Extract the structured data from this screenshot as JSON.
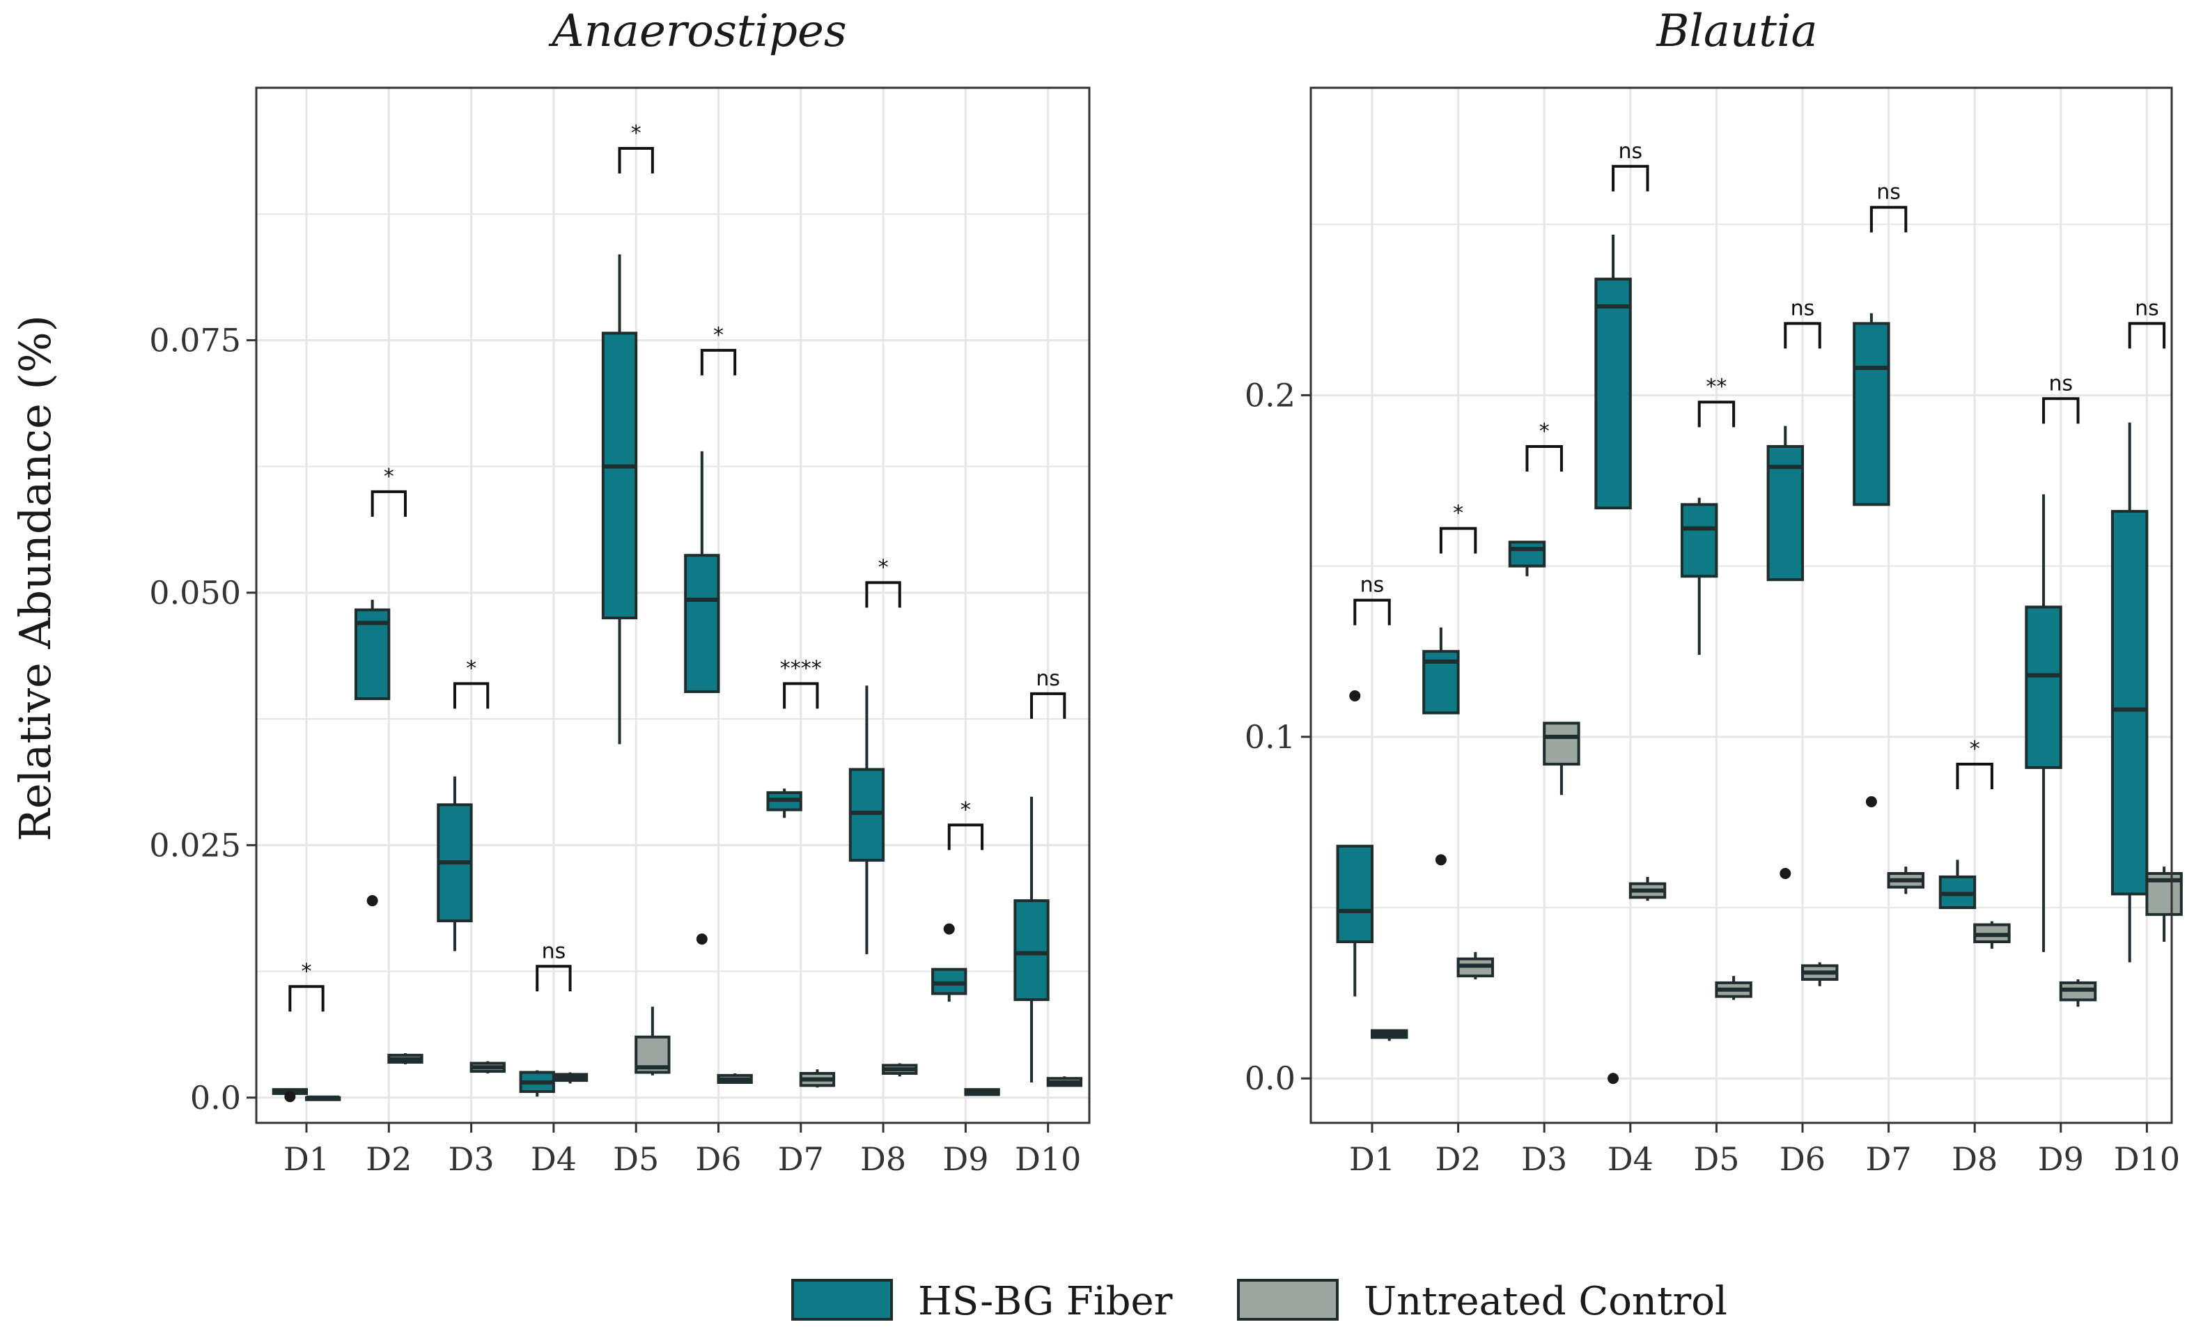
{
  "colors": {
    "treatment_fill": "#0e7a86",
    "control_fill": "#9ba6a0",
    "box_stroke": "#1f2d2f",
    "grid": "#e6e6e6",
    "panel_border": "#333333"
  },
  "y_axis_label": "Relative Abundance (%)",
  "legend": {
    "items": [
      {
        "label": "HS-BG Fiber",
        "color": "#0e7a86"
      },
      {
        "label": "Untreated Control",
        "color": "#9ba6a0"
      }
    ]
  },
  "chart_data": [
    {
      "type": "boxplot",
      "title": "Anaerostipes",
      "categories": [
        "D1",
        "D2",
        "D3",
        "D4",
        "D5",
        "D6",
        "D7",
        "D8",
        "D9",
        "D10"
      ],
      "ylim": [
        -0.0025,
        0.1
      ],
      "yticks": [
        0.0,
        0.025,
        0.05,
        0.075
      ],
      "ytick_labels": [
        "0.0",
        "0.025",
        "0.050",
        "0.075"
      ],
      "series": [
        {
          "name": "HS-BG Fiber",
          "boxes": [
            {
              "min": 0.0004,
              "q1": 0.0004,
              "median": 0.0006,
              "q3": 0.0008,
              "max": 0.0008,
              "outliers": [
                0.0001
              ]
            },
            {
              "min": 0.0395,
              "q1": 0.0395,
              "median": 0.047,
              "q3": 0.0483,
              "max": 0.0493,
              "outliers": [
                0.0195
              ]
            },
            {
              "min": 0.0145,
              "q1": 0.0175,
              "median": 0.0233,
              "q3": 0.029,
              "max": 0.0318,
              "outliers": []
            },
            {
              "min": 0.0001,
              "q1": 0.0006,
              "median": 0.0015,
              "q3": 0.0025,
              "max": 0.0027,
              "outliers": []
            },
            {
              "min": 0.035,
              "q1": 0.0475,
              "median": 0.0625,
              "q3": 0.0757,
              "max": 0.0835,
              "outliers": []
            },
            {
              "min": 0.0402,
              "q1": 0.0402,
              "median": 0.0493,
              "q3": 0.0537,
              "max": 0.064,
              "outliers": [
                0.0157
              ]
            },
            {
              "min": 0.0277,
              "q1": 0.0285,
              "median": 0.0295,
              "q3": 0.0302,
              "max": 0.0306,
              "outliers": []
            },
            {
              "min": 0.0142,
              "q1": 0.0235,
              "median": 0.0282,
              "q3": 0.0325,
              "max": 0.0408,
              "outliers": []
            },
            {
              "min": 0.0095,
              "q1": 0.0103,
              "median": 0.0113,
              "q3": 0.0127,
              "max": 0.0127,
              "outliers": [
                0.0167
              ]
            },
            {
              "min": 0.0015,
              "q1": 0.0097,
              "median": 0.0143,
              "q3": 0.0195,
              "max": 0.0298,
              "outliers": []
            }
          ]
        },
        {
          "name": "Untreated Control",
          "boxes": [
            {
              "min": 0.0,
              "q1": 0.0,
              "median": 0.0,
              "q3": 0.0,
              "max": 0.0,
              "outliers": []
            },
            {
              "min": 0.0033,
              "q1": 0.0035,
              "median": 0.0038,
              "q3": 0.0042,
              "max": 0.0044,
              "outliers": []
            },
            {
              "min": 0.0024,
              "q1": 0.0026,
              "median": 0.003,
              "q3": 0.0034,
              "max": 0.0036,
              "outliers": []
            },
            {
              "min": 0.0014,
              "q1": 0.0017,
              "median": 0.002,
              "q3": 0.0023,
              "max": 0.0025,
              "outliers": []
            },
            {
              "min": 0.0022,
              "q1": 0.0025,
              "median": 0.003,
              "q3": 0.006,
              "max": 0.009,
              "outliers": []
            },
            {
              "min": 0.0014,
              "q1": 0.0015,
              "median": 0.0018,
              "q3": 0.0022,
              "max": 0.0024,
              "outliers": []
            },
            {
              "min": 0.001,
              "q1": 0.0012,
              "median": 0.0018,
              "q3": 0.0024,
              "max": 0.0028,
              "outliers": []
            },
            {
              "min": 0.0021,
              "q1": 0.0024,
              "median": 0.0028,
              "q3": 0.0032,
              "max": 0.0034,
              "outliers": []
            },
            {
              "min": 0.0002,
              "q1": 0.0003,
              "median": 0.0005,
              "q3": 0.0008,
              "max": 0.0009,
              "outliers": []
            },
            {
              "min": 0.0011,
              "q1": 0.0012,
              "median": 0.0015,
              "q3": 0.0019,
              "max": 0.0021,
              "outliers": []
            }
          ]
        }
      ],
      "significance": [
        "*",
        "*",
        "*",
        "ns",
        "*",
        "*",
        "****",
        "*",
        "*",
        "ns"
      ],
      "significance_y": [
        0.011,
        0.06,
        0.041,
        0.013,
        0.094,
        0.074,
        0.041,
        0.051,
        0.027,
        0.04
      ]
    },
    {
      "type": "boxplot",
      "title": "Blautia",
      "categories": [
        "D1",
        "D2",
        "D3",
        "D4",
        "D5",
        "D6",
        "D7",
        "D8",
        "D9",
        "D10"
      ],
      "ylim": [
        -0.013,
        0.29
      ],
      "yticks": [
        0.0,
        0.1,
        0.2
      ],
      "ytick_labels": [
        "0.0",
        "0.1",
        "0.2"
      ],
      "series": [
        {
          "name": "HS-BG Fiber",
          "boxes": [
            {
              "min": 0.024,
              "q1": 0.04,
              "median": 0.049,
              "q3": 0.068,
              "max": 0.068,
              "outliers": [
                0.112
              ]
            },
            {
              "min": 0.107,
              "q1": 0.107,
              "median": 0.122,
              "q3": 0.125,
              "max": 0.132,
              "outliers": [
                0.064
              ]
            },
            {
              "min": 0.147,
              "q1": 0.15,
              "median": 0.155,
              "q3": 0.157,
              "max": 0.157,
              "outliers": []
            },
            {
              "min": 0.167,
              "q1": 0.167,
              "median": 0.226,
              "q3": 0.234,
              "max": 0.247,
              "outliers": [
                0.0
              ]
            },
            {
              "min": 0.124,
              "q1": 0.147,
              "median": 0.161,
              "q3": 0.168,
              "max": 0.17,
              "outliers": []
            },
            {
              "min": 0.146,
              "q1": 0.146,
              "median": 0.179,
              "q3": 0.185,
              "max": 0.191,
              "outliers": [
                0.06
              ]
            },
            {
              "min": 0.168,
              "q1": 0.168,
              "median": 0.208,
              "q3": 0.221,
              "max": 0.224,
              "outliers": [
                0.081
              ]
            },
            {
              "min": 0.05,
              "q1": 0.05,
              "median": 0.054,
              "q3": 0.059,
              "max": 0.064,
              "outliers": []
            },
            {
              "min": 0.037,
              "q1": 0.091,
              "median": 0.118,
              "q3": 0.138,
              "max": 0.171,
              "outliers": []
            },
            {
              "min": 0.034,
              "q1": 0.054,
              "median": 0.108,
              "q3": 0.166,
              "max": 0.192,
              "outliers": []
            }
          ]
        },
        {
          "name": "Untreated Control",
          "boxes": [
            {
              "min": 0.011,
              "q1": 0.012,
              "median": 0.013,
              "q3": 0.014,
              "max": 0.014,
              "outliers": []
            },
            {
              "min": 0.029,
              "q1": 0.03,
              "median": 0.033,
              "q3": 0.035,
              "max": 0.037,
              "outliers": []
            },
            {
              "min": 0.083,
              "q1": 0.092,
              "median": 0.1,
              "q3": 0.104,
              "max": 0.104,
              "outliers": []
            },
            {
              "min": 0.052,
              "q1": 0.053,
              "median": 0.055,
              "q3": 0.057,
              "max": 0.059,
              "outliers": []
            },
            {
              "min": 0.023,
              "q1": 0.024,
              "median": 0.026,
              "q3": 0.028,
              "max": 0.03,
              "outliers": []
            },
            {
              "min": 0.027,
              "q1": 0.029,
              "median": 0.031,
              "q3": 0.033,
              "max": 0.034,
              "outliers": []
            },
            {
              "min": 0.054,
              "q1": 0.056,
              "median": 0.058,
              "q3": 0.06,
              "max": 0.062,
              "outliers": []
            },
            {
              "min": 0.038,
              "q1": 0.04,
              "median": 0.042,
              "q3": 0.045,
              "max": 0.046,
              "outliers": []
            },
            {
              "min": 0.021,
              "q1": 0.023,
              "median": 0.026,
              "q3": 0.028,
              "max": 0.029,
              "outliers": []
            },
            {
              "min": 0.04,
              "q1": 0.048,
              "median": 0.058,
              "q3": 0.06,
              "max": 0.062,
              "outliers": []
            }
          ]
        }
      ],
      "significance": [
        "ns",
        "*",
        "*",
        "ns",
        "**",
        "ns",
        "ns",
        "*",
        "ns",
        "ns"
      ],
      "significance_y": [
        0.14,
        0.161,
        0.185,
        0.267,
        0.198,
        0.221,
        0.255,
        0.092,
        0.199,
        0.221
      ]
    }
  ]
}
